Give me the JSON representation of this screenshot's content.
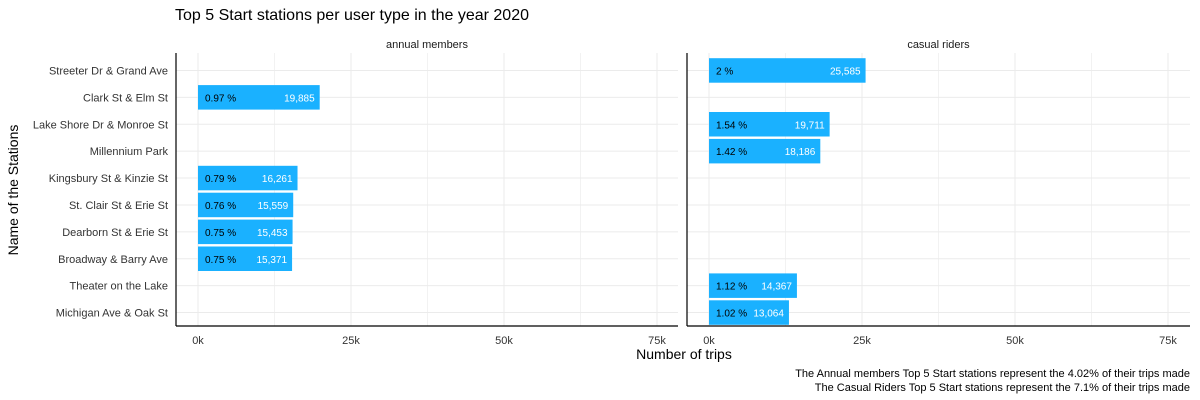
{
  "chart_data": {
    "type": "bar",
    "orientation": "horizontal",
    "title": "Top 5 Start stations per user type in the year 2020",
    "xlabel": "Number of trips",
    "ylabel": "Name of the Stations",
    "xlim": [
      0,
      75000
    ],
    "x_ticks": [
      0,
      25000,
      50000,
      75000
    ],
    "x_tick_labels": [
      "0k",
      "25k",
      "50k",
      "75k"
    ],
    "grid": true,
    "bar_color": "#1AB1FF",
    "categories": [
      "Streeter Dr & Grand Ave",
      "Clark St & Elm St",
      "Lake Shore Dr & Monroe St",
      "Millennium Park",
      "Kingsbury St & Kinzie St",
      "St. Clair St & Erie St",
      "Dearborn St & Erie St",
      "Broadway & Barry Ave",
      "Theater on the Lake",
      "Michigan Ave & Oak St"
    ],
    "panels": [
      {
        "name": "annual members",
        "bars": [
          {
            "category": "Clark St & Elm St",
            "value": 19885,
            "value_label": "19,885",
            "pct_label": "0.97 %"
          },
          {
            "category": "Kingsbury St & Kinzie St",
            "value": 16261,
            "value_label": "16,261",
            "pct_label": "0.79 %"
          },
          {
            "category": "St. Clair St & Erie St",
            "value": 15559,
            "value_label": "15,559",
            "pct_label": "0.76 %"
          },
          {
            "category": "Dearborn St & Erie St",
            "value": 15453,
            "value_label": "15,453",
            "pct_label": "0.75 %"
          },
          {
            "category": "Broadway & Barry Ave",
            "value": 15371,
            "value_label": "15,371",
            "pct_label": "0.75 %"
          }
        ]
      },
      {
        "name": "casual riders",
        "bars": [
          {
            "category": "Streeter Dr & Grand Ave",
            "value": 25585,
            "value_label": "25,585",
            "pct_label": "2 %"
          },
          {
            "category": "Lake Shore Dr & Monroe St",
            "value": 19711,
            "value_label": "19,711",
            "pct_label": "1.54 %"
          },
          {
            "category": "Millennium Park",
            "value": 18186,
            "value_label": "18,186",
            "pct_label": "1.42 %"
          },
          {
            "category": "Theater on the Lake",
            "value": 14367,
            "value_label": "14,367",
            "pct_label": "1.12 %"
          },
          {
            "category": "Michigan Ave & Oak St",
            "value": 13064,
            "value_label": "13,064",
            "pct_label": "1.02 %"
          }
        ]
      }
    ],
    "captions": [
      "The Annual members Top 5 Start stations represent the 4.02% of their trips made",
      "The Casual Riders Top 5 Start stations represent the 7.1% of their trips made"
    ]
  }
}
